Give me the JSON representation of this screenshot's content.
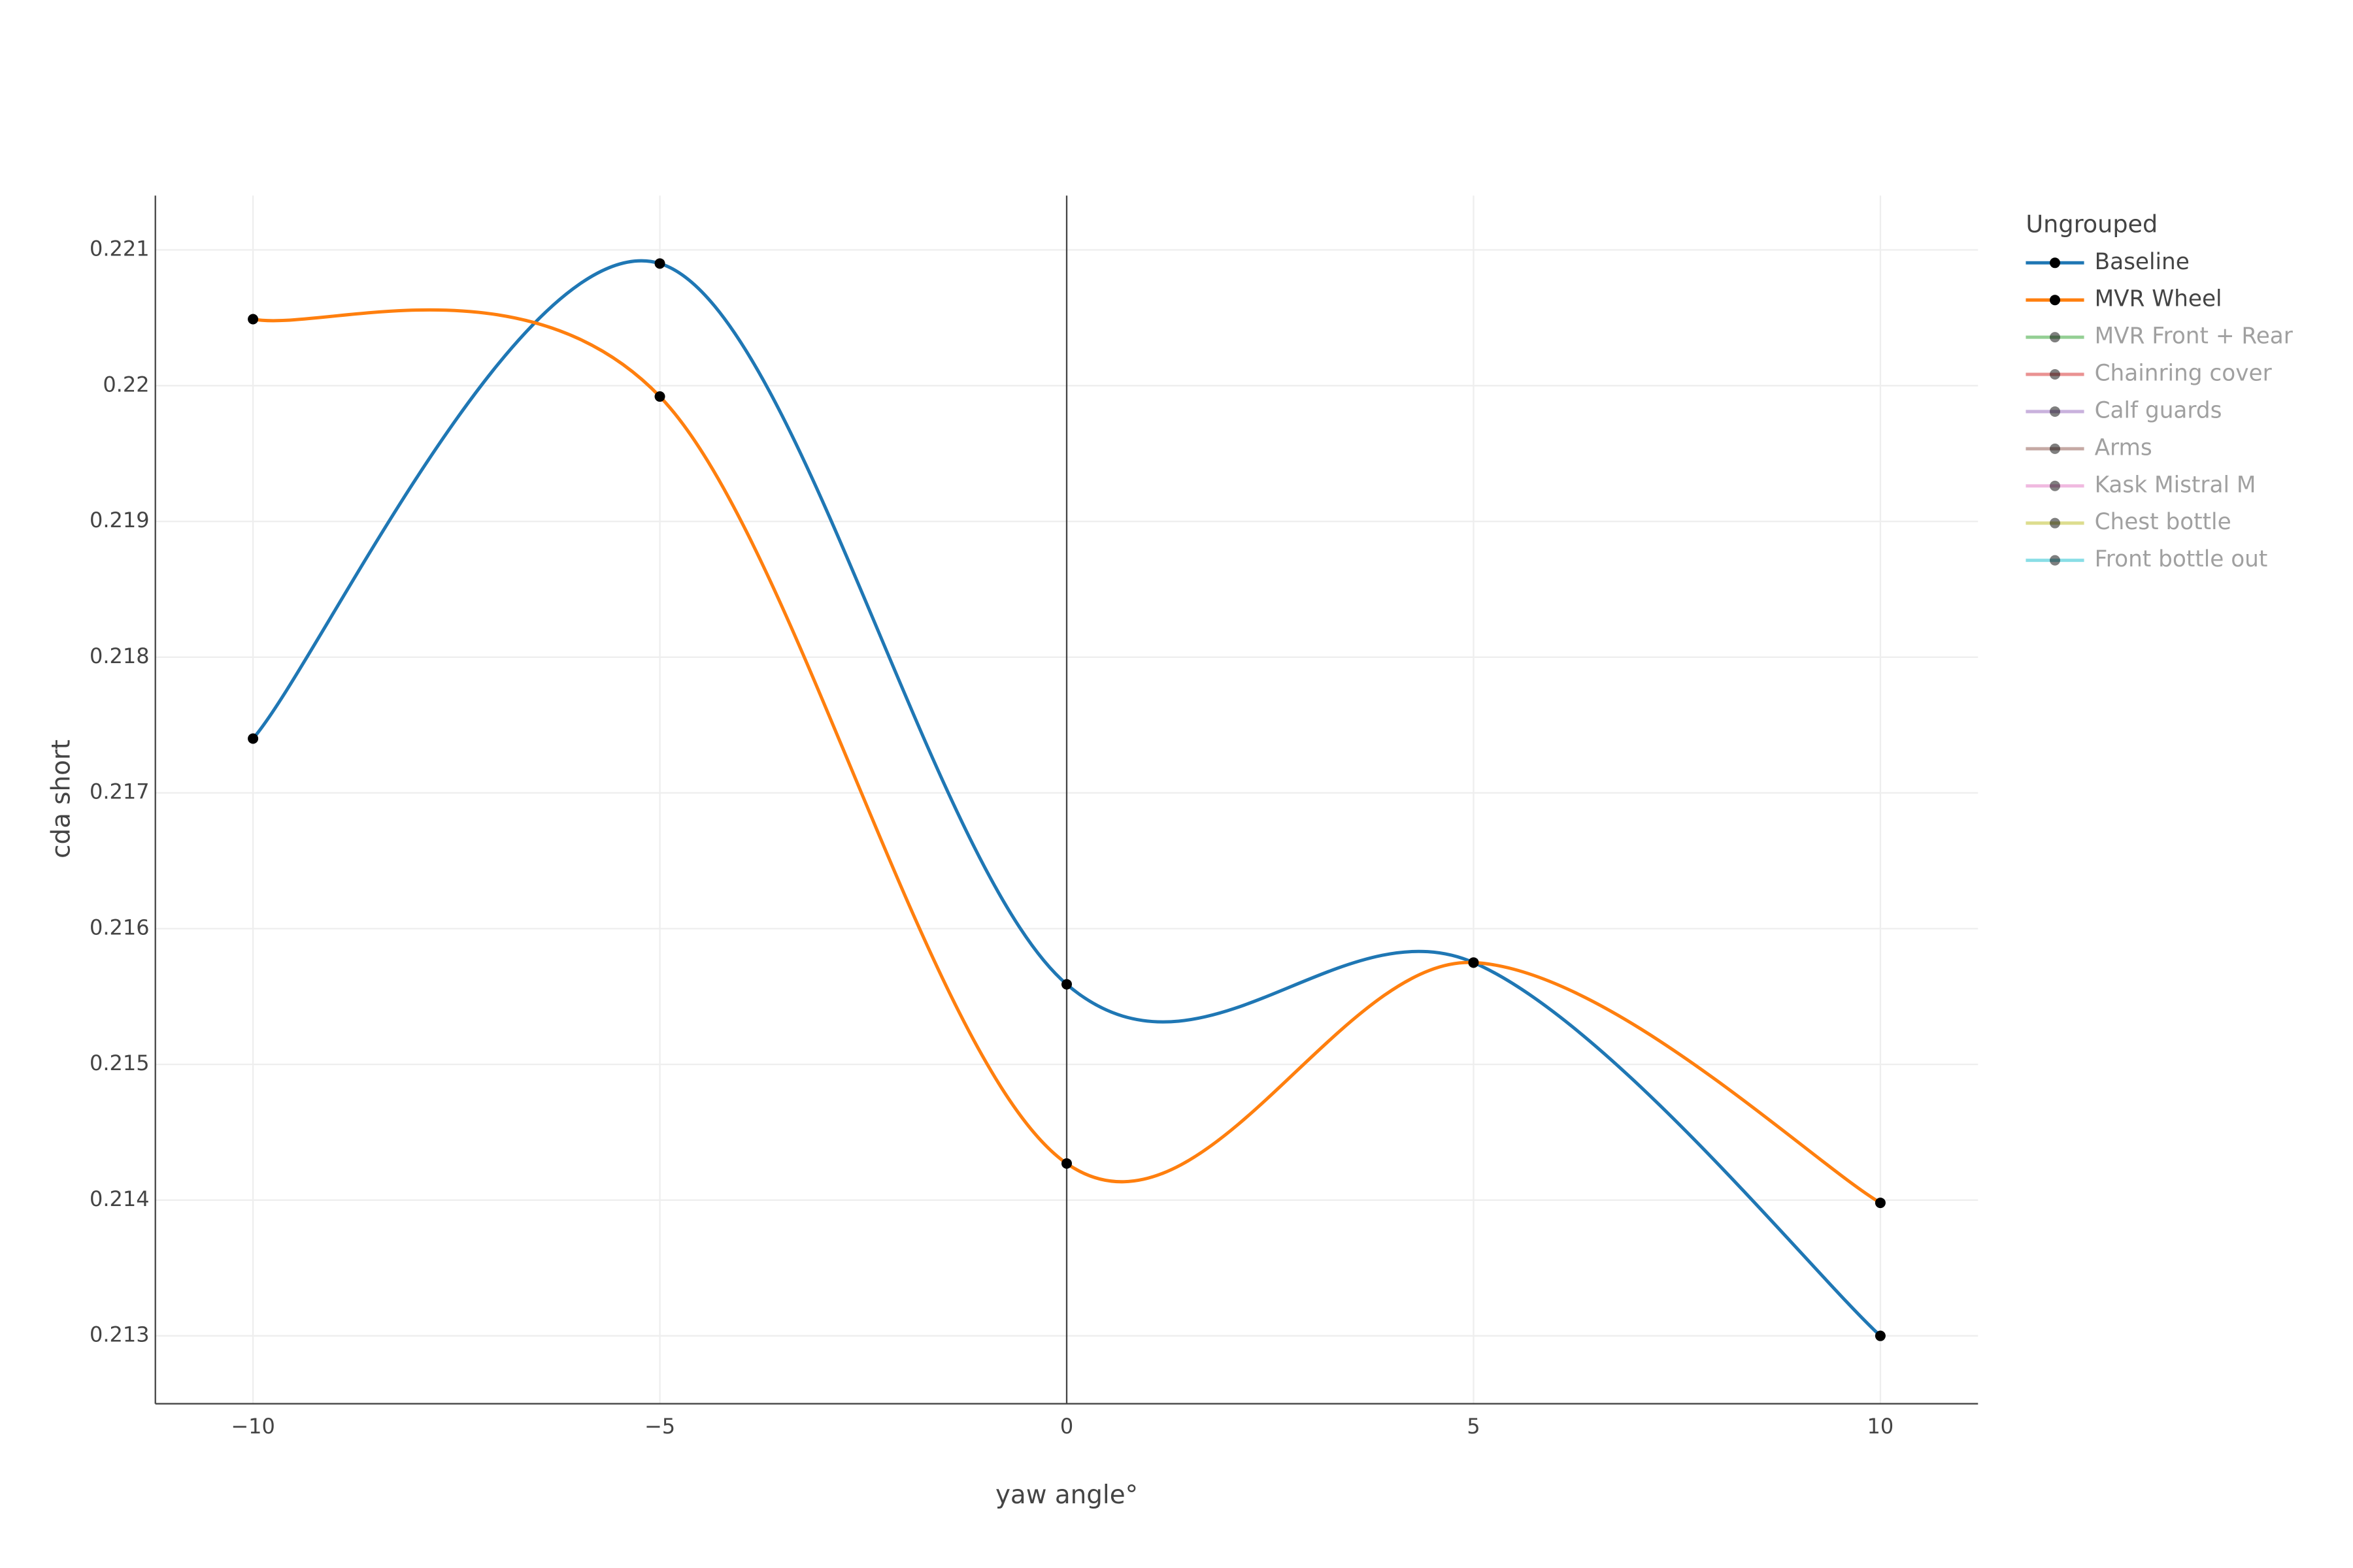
{
  "chart_data": {
    "type": "line",
    "smooth": "spline",
    "x_label": "yaw angle°",
    "y_label": "cda short",
    "legend_title": "Ungrouped",
    "legend_position": "right",
    "x": [
      -10,
      -5,
      0,
      5,
      10
    ],
    "series": [
      {
        "name": "Baseline",
        "color": "#1f77b4",
        "values": [
          0.2174,
          0.2209,
          0.21559,
          0.21575,
          0.213
        ]
      },
      {
        "name": "MVR Wheel",
        "color": "#ff7f0e",
        "values": [
          0.22049,
          0.21992,
          0.21427,
          0.21575,
          0.21398
        ]
      },
      {
        "name": "MVR Front + Rear",
        "color": "#2ca02c",
        "visible": false
      },
      {
        "name": "Chainring cover",
        "color": "#d62728",
        "visible": false
      },
      {
        "name": "Calf guards",
        "color": "#9467bd",
        "visible": false
      },
      {
        "name": "Arms",
        "color": "#8c564b",
        "visible": false
      },
      {
        "name": "Kask Mistral M",
        "color": "#e377c2",
        "visible": false
      },
      {
        "name": "Chest bottle",
        "color": "#bcbd22",
        "visible": false
      },
      {
        "name": "Front bottle out",
        "color": "#17becf",
        "visible": false
      }
    ],
    "marker_color": "#000000",
    "xlim": [
      -11.2,
      11.2
    ],
    "xticks": [
      {
        "value": -10,
        "label": "−10"
      },
      {
        "value": -5,
        "label": "−5"
      },
      0,
      5,
      10
    ],
    "ylim": [
      0.2125,
      0.2214
    ],
    "yticks": [
      0.213,
      0.214,
      0.215,
      0.216,
      0.217,
      0.218,
      0.219,
      0.22,
      0.221
    ],
    "grid": true,
    "zeroline_x": true
  }
}
